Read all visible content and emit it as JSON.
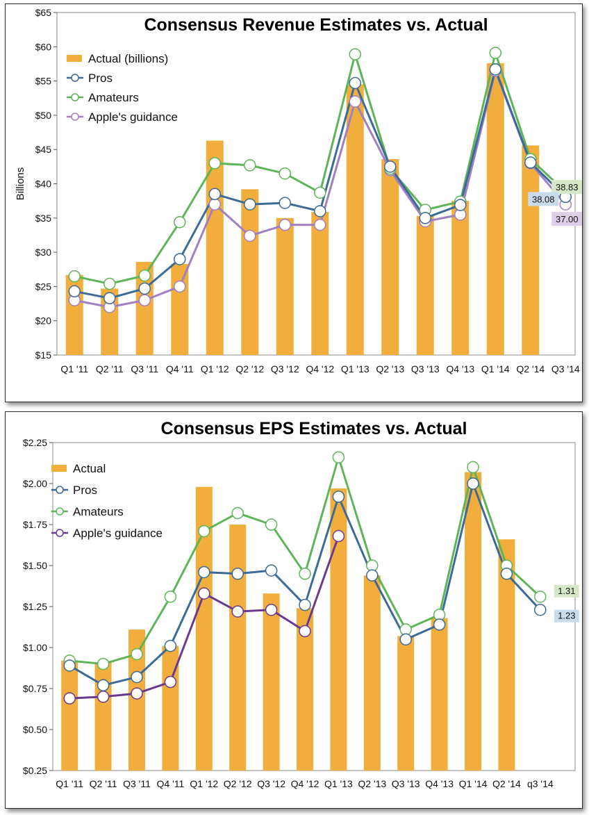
{
  "chart_data": [
    {
      "type": "bar+line",
      "title": "Consensus Revenue Estimates vs. Actual",
      "xlabel": "",
      "ylabel": "Billions",
      "ylim": [
        15,
        65
      ],
      "ytick_labels": [
        "$15",
        "$20",
        "$25",
        "$30",
        "$35",
        "$40",
        "$45",
        "$50",
        "$55",
        "$60",
        "$65"
      ],
      "categories": [
        "Q1 '11",
        "Q2 '11",
        "Q3 '11",
        "Q4 '11",
        "Q1 '12",
        "Q2 '12",
        "Q3 '12",
        "Q4 '12",
        "Q1 '13",
        "Q2 '13",
        "Q3 '13",
        "Q4 '13",
        "Q1 '14",
        "Q2 '14",
        "Q3 '14"
      ],
      "legend": {
        "placement": "top-left"
      },
      "series": [
        {
          "name": "Actual (billions)",
          "kind": "bar",
          "color": "#f2ae3d",
          "values": [
            26.7,
            24.7,
            28.6,
            28.3,
            46.3,
            39.2,
            35.0,
            35.9,
            54.5,
            43.6,
            35.3,
            37.5,
            57.6,
            45.6,
            null
          ]
        },
        {
          "name": "Pros",
          "kind": "line",
          "color": "#3b6b96",
          "values": [
            24.3,
            23.3,
            24.7,
            29.0,
            38.5,
            37.0,
            37.2,
            36.0,
            54.7,
            42.5,
            35.0,
            36.9,
            56.7,
            43.1,
            38.08
          ]
        },
        {
          "name": "Amateurs",
          "kind": "line",
          "color": "#5db557",
          "values": [
            26.5,
            25.4,
            26.6,
            34.4,
            43.0,
            42.7,
            41.5,
            38.7,
            58.9,
            42.2,
            36.2,
            37.4,
            59.1,
            43.6,
            38.83
          ]
        },
        {
          "name": "Apple's guidance",
          "kind": "line",
          "color": "#a07fc2",
          "values": [
            23.0,
            22.0,
            23.0,
            25.0,
            37.0,
            32.4,
            34.0,
            34.0,
            52.0,
            42.0,
            34.5,
            35.5,
            56.5,
            43.0,
            37.0
          ]
        }
      ],
      "annotations": [
        {
          "text": "38.83",
          "series": "Amateurs",
          "bg": "#d7e8c6"
        },
        {
          "text": "38.08",
          "series": "Pros",
          "bg": "#c9dcee"
        },
        {
          "text": "37.00",
          "series": "Apple's guidance",
          "bg": "#ddcfe6"
        }
      ]
    },
    {
      "type": "bar+line",
      "title": "Consensus EPS Estimates vs. Actual",
      "xlabel": "",
      "ylabel": "",
      "ylim": [
        0.25,
        2.25
      ],
      "ytick_labels": [
        "$0.25",
        "$0.50",
        "$0.75",
        "$1.00",
        "$1.25",
        "$1.50",
        "$1.75",
        "$2.00",
        "$2.25"
      ],
      "categories": [
        "Q1 '11",
        "Q2 '11",
        "Q3 '11",
        "Q4 '11",
        "Q1 '12",
        "Q2 '12",
        "Q3 '12",
        "Q4 '12",
        "Q1 '13",
        "Q2 '13",
        "Q3 '13",
        "Q4 '13",
        "Q1 '14",
        "Q2 '14",
        "q3 '14"
      ],
      "legend": {
        "placement": "top-left"
      },
      "series": [
        {
          "name": "Actual",
          "kind": "bar",
          "color": "#f2ae3d",
          "values": [
            0.92,
            0.91,
            1.11,
            1.01,
            1.98,
            1.75,
            1.33,
            1.24,
            1.97,
            1.44,
            1.07,
            1.18,
            2.07,
            1.66,
            null
          ]
        },
        {
          "name": "Pros",
          "kind": "line",
          "color": "#3b6b96",
          "values": [
            0.89,
            0.77,
            0.82,
            1.01,
            1.46,
            1.45,
            1.47,
            1.26,
            1.92,
            1.44,
            1.05,
            1.14,
            2.0,
            1.45,
            1.23
          ]
        },
        {
          "name": "Amateurs",
          "kind": "line",
          "color": "#5db557",
          "values": [
            0.92,
            0.9,
            0.96,
            1.31,
            1.71,
            1.82,
            1.75,
            1.45,
            2.16,
            1.5,
            1.11,
            1.2,
            2.1,
            1.5,
            1.31
          ]
        },
        {
          "name": "Apple's guidance",
          "kind": "line",
          "color": "#6a3a8f",
          "values": [
            0.69,
            0.7,
            0.72,
            0.79,
            1.33,
            1.22,
            1.23,
            1.1,
            1.68,
            null,
            null,
            null,
            null,
            null,
            null
          ]
        }
      ],
      "annotations": [
        {
          "text": "1.31",
          "series": "Amateurs",
          "bg": "#d7e8c6"
        },
        {
          "text": "1.23",
          "series": "Pros",
          "bg": "#c9dcee"
        }
      ]
    }
  ]
}
